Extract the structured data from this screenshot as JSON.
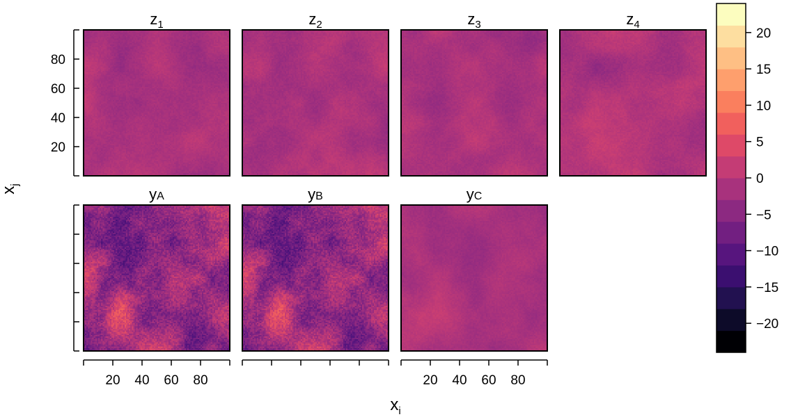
{
  "chart_data": {
    "type": "heatmap",
    "panels": [
      {
        "title_main": "z",
        "title_sub": "1",
        "sub_style": "subscript",
        "amplitude": 2.4,
        "seed": 11
      },
      {
        "title_main": "z",
        "title_sub": "2",
        "sub_style": "subscript",
        "amplitude": 2.6,
        "seed": 23
      },
      {
        "title_main": "z",
        "title_sub": "3",
        "sub_style": "subscript",
        "amplitude": 2.4,
        "seed": 37
      },
      {
        "title_main": "z",
        "title_sub": "4",
        "sub_style": "subscript",
        "amplitude": 2.6,
        "seed": 41
      },
      {
        "title_main": "y",
        "title_sub": "A",
        "sub_style": "small",
        "amplitude": 9.0,
        "seed": 53
      },
      {
        "title_main": "y",
        "title_sub": "B",
        "sub_style": "small",
        "amplitude": 9.0,
        "seed": 53
      },
      {
        "title_main": "y",
        "title_sub": "C",
        "sub_style": "small",
        "amplitude": 2.2,
        "seed": 67
      }
    ],
    "x_ticks": [
      "20",
      "40",
      "60",
      "80"
    ],
    "y_ticks": [
      "20",
      "40",
      "60",
      "80"
    ],
    "x_tick_values": [
      20,
      40,
      60,
      80
    ],
    "y_tick_values": [
      20,
      40,
      60,
      80
    ],
    "xlim": [
      0,
      100
    ],
    "ylim": [
      0,
      100
    ],
    "xlabel_main": "x",
    "xlabel_sub": "i",
    "ylabel_main": "x",
    "ylabel_sub": "j",
    "colorbar": {
      "levels": [
        -24,
        -21,
        -18,
        -15,
        -12,
        -9,
        -6,
        -3,
        0,
        3,
        6,
        9,
        12,
        15,
        18,
        21,
        24
      ],
      "tick_values": [
        -20,
        -15,
        -10,
        -5,
        0,
        5,
        10,
        15,
        20
      ],
      "tick_labels": [
        "−20",
        "−15",
        "−10",
        "−5",
        "0",
        "5",
        "10",
        "15",
        "20"
      ],
      "colors": [
        "#000004",
        "#0d0b29",
        "#221150",
        "#3b0f70",
        "#57157e",
        "#721f81",
        "#8c2981",
        "#a8327d",
        "#c43c75",
        "#de4968",
        "#f1605d",
        "#fa7f5e",
        "#fe9f6d",
        "#febf84",
        "#fddea0",
        "#fcfdbf"
      ]
    },
    "grid": false,
    "legend": "right"
  }
}
